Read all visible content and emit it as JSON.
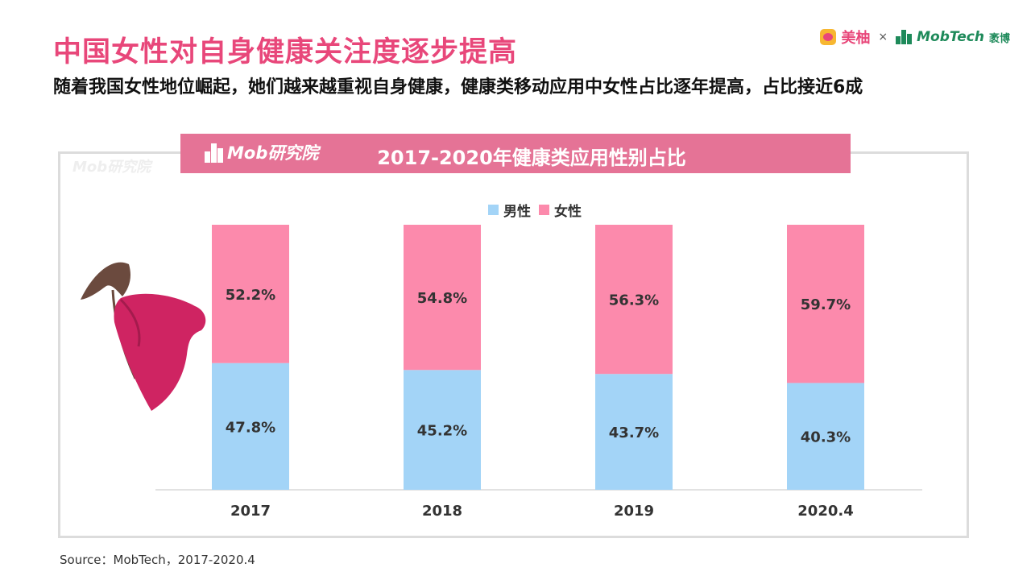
{
  "header": {
    "title": "中国女性对自身健康关注度逐步提高",
    "subtitle": "随着我国女性地位崛起，她们越来越重视自身健康，健康类移动应用中女性占比逐年提高，占比接近6成"
  },
  "brand": {
    "meiyou": "美柚",
    "times": "×",
    "mobtech": "MobTech",
    "mobtech_cn": "袤博"
  },
  "banner": {
    "logo_text": "Mob研究院",
    "watermark": "Mob研究院"
  },
  "colors": {
    "male": "#a3d4f7",
    "female": "#fc8aac",
    "title": "#e8477a",
    "banner": "#e57396"
  },
  "chart_data": {
    "type": "bar",
    "stacked": true,
    "title": "2017-2020年健康类应用性别占比",
    "categories": [
      "2017",
      "2018",
      "2019",
      "2020.4"
    ],
    "series": [
      {
        "name": "男性",
        "values": [
          47.8,
          45.2,
          43.7,
          40.3
        ],
        "labels": [
          "47.8%",
          "45.2%",
          "43.7%",
          "40.3%"
        ]
      },
      {
        "name": "女性",
        "values": [
          52.2,
          54.8,
          56.3,
          59.7
        ],
        "labels": [
          "52.2%",
          "54.8%",
          "56.3%",
          "59.7%"
        ]
      }
    ],
    "ylim": [
      0,
      100
    ],
    "grid": false,
    "legend_position": "top-center"
  },
  "footer": {
    "source": "Source：MobTech，2017-2020.4"
  }
}
